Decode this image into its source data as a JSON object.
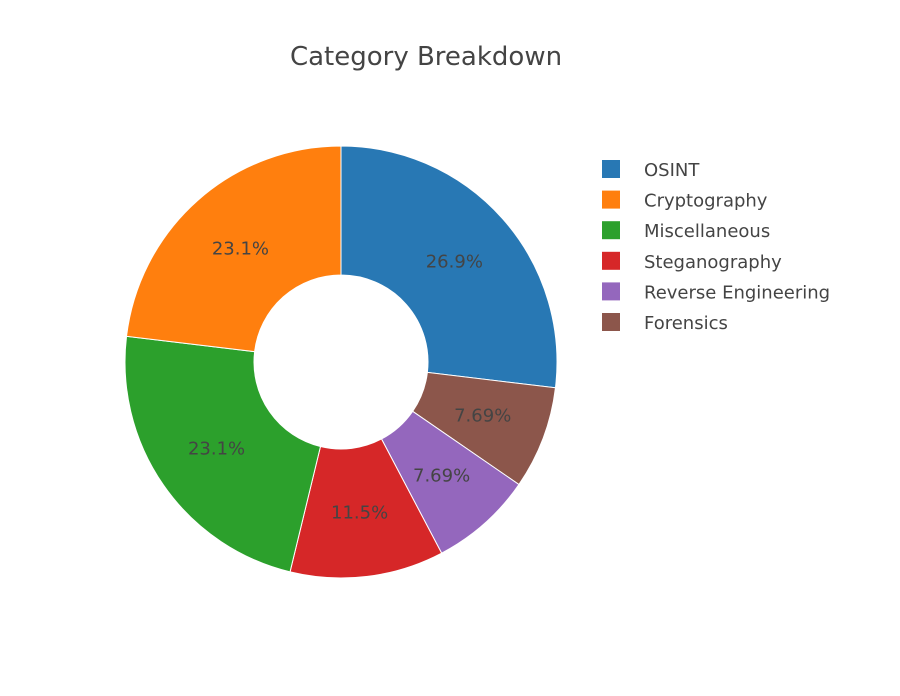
{
  "chart_data": {
    "type": "pie",
    "hole": true,
    "title": "Category Breakdown",
    "direction": "clockwise",
    "start_angle_deg": 0,
    "slices": [
      {
        "name": "OSINT",
        "value": 26.9,
        "label": "26.9%",
        "color": "#2878b4"
      },
      {
        "name": "Forensics",
        "value": 7.69,
        "label": "7.69%",
        "color": "#8c564b"
      },
      {
        "name": "Reverse Engineering",
        "value": 7.69,
        "label": "7.69%",
        "color": "#9467bd"
      },
      {
        "name": "Steganography",
        "value": 11.5,
        "label": "11.5%",
        "color": "#d62728"
      },
      {
        "name": "Miscellaneous",
        "value": 23.1,
        "label": "23.1%",
        "color": "#2ca02c"
      },
      {
        "name": "Cryptography",
        "value": 23.1,
        "label": "23.1%",
        "color": "#ff7f0e"
      }
    ],
    "legend": {
      "placement": "right",
      "order": [
        "OSINT",
        "Cryptography",
        "Miscellaneous",
        "Steganography",
        "Reverse Engineering",
        "Forensics"
      ]
    }
  }
}
